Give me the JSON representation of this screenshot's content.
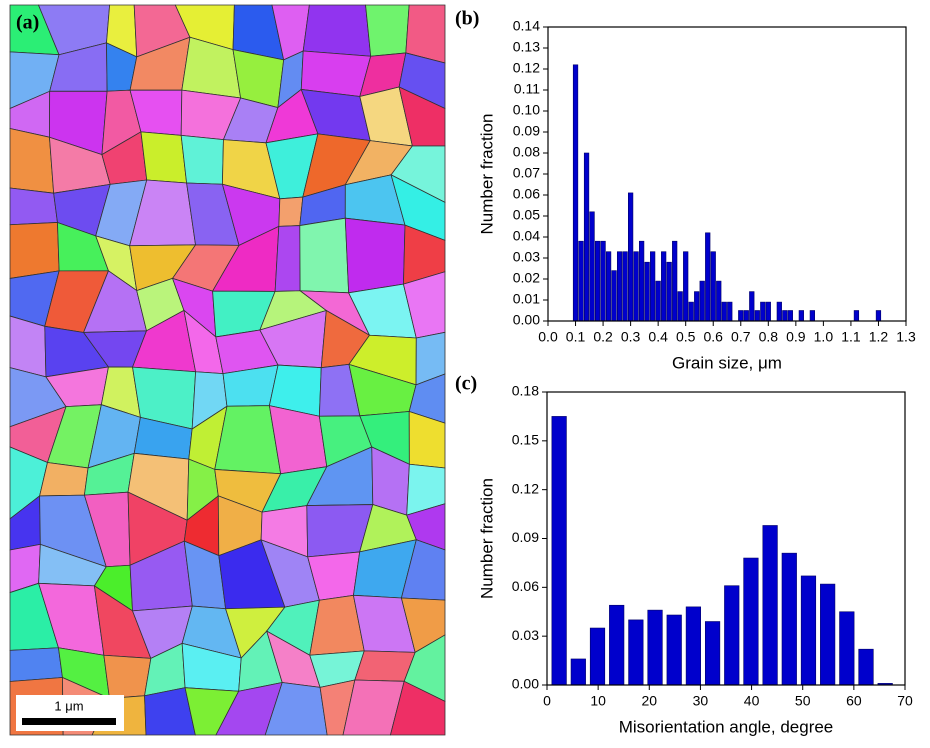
{
  "image_panel": {
    "label": "(a)",
    "scale_bar": "1 μm"
  },
  "chart_data": [
    {
      "type": "histogram",
      "label": "(b)",
      "x_label": "Grain size, μm",
      "y_label": "Number fraction",
      "color": "#0000cc",
      "bins": [
        0.09,
        0.11,
        0.13,
        0.15,
        0.17,
        0.19,
        0.21,
        0.23,
        0.25,
        0.27,
        0.29,
        0.31,
        0.33,
        0.35,
        0.37,
        0.39,
        0.41,
        0.43,
        0.45,
        0.47,
        0.49,
        0.51,
        0.53,
        0.55,
        0.57,
        0.59,
        0.61,
        0.63,
        0.65,
        0.67,
        0.69,
        0.71,
        0.73,
        0.75,
        0.77,
        0.79,
        0.81,
        0.83,
        0.85,
        0.87,
        0.89,
        0.91,
        0.93,
        0.95,
        0.97,
        0.99,
        1.01,
        1.03,
        1.05,
        1.07,
        1.09,
        1.11,
        1.13,
        1.15,
        1.17,
        1.19,
        1.21,
        1.23
      ],
      "values": [
        0.122,
        0.038,
        0.08,
        0.052,
        0.038,
        0.038,
        0.033,
        0.024,
        0.033,
        0.033,
        0.061,
        0.033,
        0.038,
        0.028,
        0.033,
        0.019,
        0.033,
        0.028,
        0.038,
        0.014,
        0.033,
        0.009,
        0.014,
        0.019,
        0.042,
        0.033,
        0.019,
        0.009,
        0.009,
        0,
        0.005,
        0.005,
        0.014,
        0.005,
        0.009,
        0.009,
        0,
        0.009,
        0.005,
        0.005,
        0,
        0.005,
        0,
        0.005,
        0,
        0,
        0,
        0,
        0,
        0,
        0,
        0.005,
        0,
        0,
        0,
        0.005,
        0
      ],
      "xlim": [
        0,
        1.3
      ],
      "xticks": [
        {
          "value": 0,
          "label": "0.0"
        },
        0.1,
        0.2,
        0.3,
        0.4,
        0.5,
        0.6,
        0.7,
        0.8,
        0.9,
        {
          "value": 1,
          "label": "1.0"
        },
        1.1,
        1.2,
        1.3
      ],
      "ylim": [
        0,
        0.14
      ],
      "yticks": [
        {
          "value": 0,
          "label": "0.00"
        },
        0.01,
        0.02,
        0.03,
        0.04,
        0.05,
        0.06,
        0.07,
        0.08,
        0.09,
        {
          "value": 0.1,
          "label": "0.10"
        },
        0.11,
        0.12,
        0.13,
        0.14
      ]
    },
    {
      "type": "histogram",
      "label": "(c)",
      "x_label": "Misorientation angle, degree",
      "y_label": "Number fraction",
      "color": "#0000cc",
      "bins": [
        0.5,
        4.25,
        8,
        11.75,
        15.5,
        19.25,
        23,
        26.75,
        30.5,
        34.25,
        38,
        41.75,
        45.5,
        49.25,
        53,
        56.75,
        60.5,
        64.25,
        68
      ],
      "values": [
        0.165,
        0.016,
        0.035,
        0.049,
        0.04,
        0.046,
        0.043,
        0.048,
        0.039,
        0.061,
        0.078,
        0.098,
        0.081,
        0.067,
        0.062,
        0.045,
        0.022,
        0.001
      ],
      "xlim": [
        0,
        70
      ],
      "xticks": [
        0,
        10,
        20,
        30,
        40,
        50,
        60,
        70
      ],
      "ylim": [
        0,
        0.18
      ],
      "yticks": [
        {
          "value": 0,
          "label": "0.00"
        },
        0.03,
        0.06,
        0.09,
        0.12,
        0.15,
        0.18
      ]
    }
  ]
}
